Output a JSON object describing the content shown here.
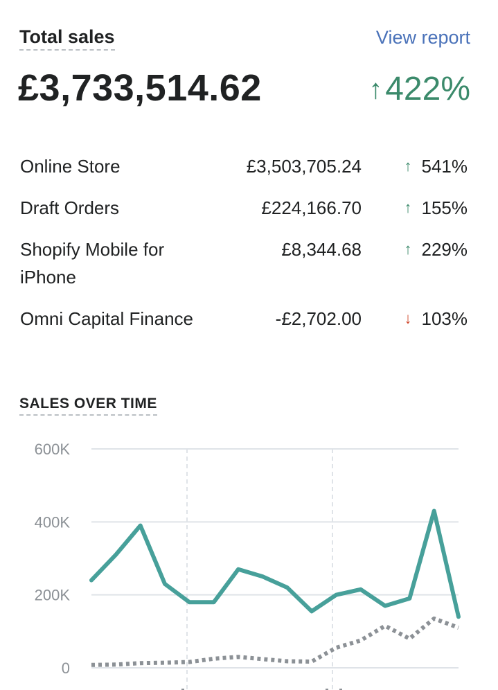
{
  "header": {
    "title": "Total sales",
    "view_report_label": "View report"
  },
  "total": {
    "value": "£3,733,514.62",
    "change": "422%",
    "direction": "up"
  },
  "breakdown": [
    {
      "name": "Online Store",
      "amount": "£3,503,705.24",
      "change": "541%",
      "direction": "up"
    },
    {
      "name": "Draft Orders",
      "amount": "£224,166.70",
      "change": "155%",
      "direction": "up"
    },
    {
      "name": "Shopify Mobile for iPhone",
      "amount": "£8,344.68",
      "change": "229%",
      "direction": "up"
    },
    {
      "name": "Omni Capital Finance",
      "amount": "-£2,702.00",
      "change": "103%",
      "direction": "down"
    }
  ],
  "colors": {
    "up": "#3b8a6b",
    "down": "#d0472c",
    "link": "#4a72b9",
    "current_series": "#47a09a",
    "comparison_series": "#8c9196"
  },
  "sales_over_time": {
    "title": "SALES OVER TIME",
    "chart_data": {
      "type": "line",
      "ylim": [
        0,
        600000
      ],
      "yticks": [
        0,
        200000,
        400000,
        600000
      ],
      "ytick_labels": [
        "0",
        "200K",
        "400K",
        "600K"
      ],
      "grid": true,
      "series": [
        {
          "style": "solid",
          "values": [
            240000,
            310000,
            390000,
            230000,
            180000,
            180000,
            270000,
            250000,
            220000,
            155000,
            200000,
            215000,
            170000,
            190000,
            430000,
            140000
          ]
        },
        {
          "style": "dotted",
          "values": [
            8000,
            9000,
            13000,
            14000,
            16000,
            25000,
            30000,
            24000,
            18000,
            17000,
            55000,
            75000,
            115000,
            80000,
            135000,
            110000
          ]
        }
      ]
    }
  }
}
